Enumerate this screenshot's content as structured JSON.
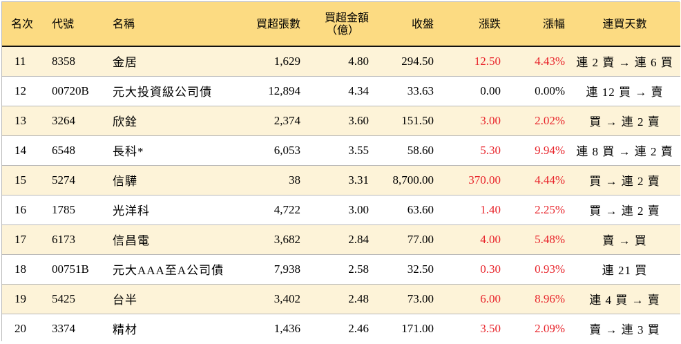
{
  "colors": {
    "header_bg": "#fcdb82",
    "odd_row_bg": "#fdf3d8",
    "even_row_bg": "#ffffff",
    "up": "#e8232a"
  },
  "headers": {
    "rank": "名次",
    "code": "代號",
    "name": "名稱",
    "buy_shares": "買超張數",
    "buy_amount_line1": "買超金額",
    "buy_amount_line2": "（億）",
    "close": "收盤",
    "change": "漲跌",
    "pct": "漲幅",
    "streak": "連買天數"
  },
  "rows": [
    {
      "rank": "11",
      "code": "8358",
      "name": "金居",
      "buy_shares": "1,629",
      "buy_amount": "4.80",
      "close": "294.50",
      "change": "12.50",
      "pct": "4.43%",
      "streak": "連 2 賣 → 連 6 買",
      "up": true
    },
    {
      "rank": "12",
      "code": "00720B",
      "name": "元大投資級公司債",
      "buy_shares": "12,894",
      "buy_amount": "4.34",
      "close": "33.63",
      "change": "0.00",
      "pct": "0.00%",
      "streak": "連 12 買 → 賣",
      "up": false
    },
    {
      "rank": "13",
      "code": "3264",
      "name": "欣銓",
      "buy_shares": "2,374",
      "buy_amount": "3.60",
      "close": "151.50",
      "change": "3.00",
      "pct": "2.02%",
      "streak": "買 → 連 2 賣",
      "up": true
    },
    {
      "rank": "14",
      "code": "6548",
      "name": "長科*",
      "buy_shares": "6,053",
      "buy_amount": "3.55",
      "close": "58.60",
      "change": "5.30",
      "pct": "9.94%",
      "streak": "連 8 買 → 連 2 賣",
      "up": true
    },
    {
      "rank": "15",
      "code": "5274",
      "name": "信驊",
      "buy_shares": "38",
      "buy_amount": "3.31",
      "close": "8,700.00",
      "change": "370.00",
      "pct": "4.44%",
      "streak": "買 → 連 2 賣",
      "up": true
    },
    {
      "rank": "16",
      "code": "1785",
      "name": "光洋科",
      "buy_shares": "4,722",
      "buy_amount": "3.00",
      "close": "63.60",
      "change": "1.40",
      "pct": "2.25%",
      "streak": "買 → 連 2 賣",
      "up": true
    },
    {
      "rank": "17",
      "code": "6173",
      "name": "信昌電",
      "buy_shares": "3,682",
      "buy_amount": "2.84",
      "close": "77.00",
      "change": "4.00",
      "pct": "5.48%",
      "streak": "賣 → 買",
      "up": true
    },
    {
      "rank": "18",
      "code": "00751B",
      "name": "元大AAA至A公司債",
      "buy_shares": "7,938",
      "buy_amount": "2.58",
      "close": "32.50",
      "change": "0.30",
      "pct": "0.93%",
      "streak": "連 21 買",
      "up": true
    },
    {
      "rank": "19",
      "code": "5425",
      "name": "台半",
      "buy_shares": "3,402",
      "buy_amount": "2.48",
      "close": "73.00",
      "change": "6.00",
      "pct": "8.96%",
      "streak": "連 4 買 → 賣",
      "up": true
    },
    {
      "rank": "20",
      "code": "3374",
      "name": "精材",
      "buy_shares": "1,436",
      "buy_amount": "2.46",
      "close": "171.00",
      "change": "3.50",
      "pct": "2.09%",
      "streak": "賣 → 連 3 買",
      "up": true
    }
  ]
}
